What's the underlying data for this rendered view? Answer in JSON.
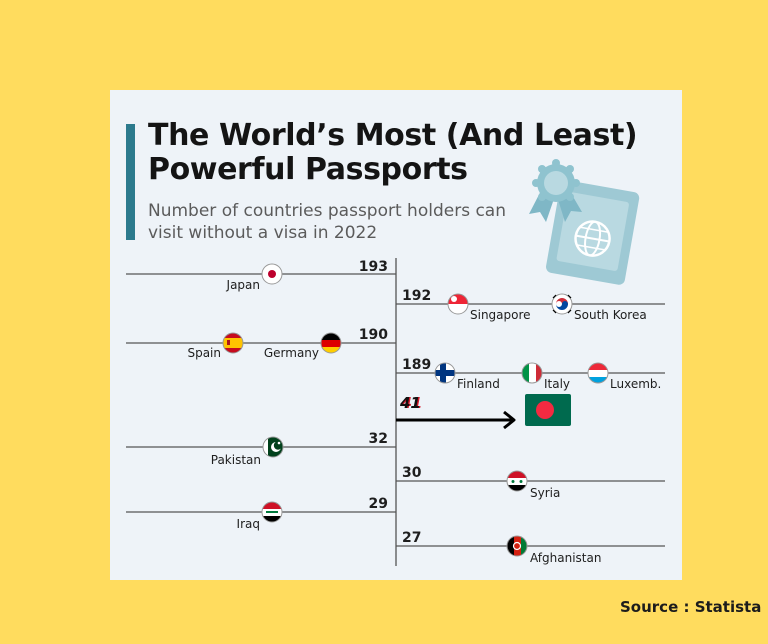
{
  "title": "The World’s Most (And Least) Powerful Passports",
  "subtitle": "Number of countries passport holders can visit without a visa in 2022",
  "source": "Source : Statista",
  "colors": {
    "background": "#ffdc5e",
    "card": "#eef3f8",
    "accent": "#2c7a8d",
    "icon": "#8fc3cf",
    "highlight": "#d7172a",
    "bangladesh_green": "#006a4e",
    "bangladesh_red": "#f42a41"
  },
  "icons": [
    "passport-icon",
    "arrow-icon"
  ],
  "chart_data": {
    "type": "table",
    "description_side": "left lines = stronger row left; right lines = row right",
    "rows": [
      {
        "value": 193,
        "side": "left",
        "countries": [
          "Japan"
        ]
      },
      {
        "value": 192,
        "side": "right",
        "countries": [
          "Singapore",
          "South Korea"
        ]
      },
      {
        "value": 190,
        "side": "left",
        "countries": [
          "Spain",
          "Germany"
        ]
      },
      {
        "value": 189,
        "side": "right",
        "countries": [
          "Finland",
          "Italy",
          "Luxemb."
        ]
      },
      {
        "value": 41,
        "side": "right",
        "countries": [],
        "highlight": true,
        "flag": "Bangladesh"
      },
      {
        "value": 32,
        "side": "left",
        "countries": [
          "Pakistan"
        ]
      },
      {
        "value": 30,
        "side": "right",
        "countries": [
          "Syria"
        ]
      },
      {
        "value": 29,
        "side": "left",
        "countries": [
          "Iraq"
        ]
      },
      {
        "value": 27,
        "side": "right",
        "countries": [
          "Afghanistan"
        ]
      }
    ]
  }
}
